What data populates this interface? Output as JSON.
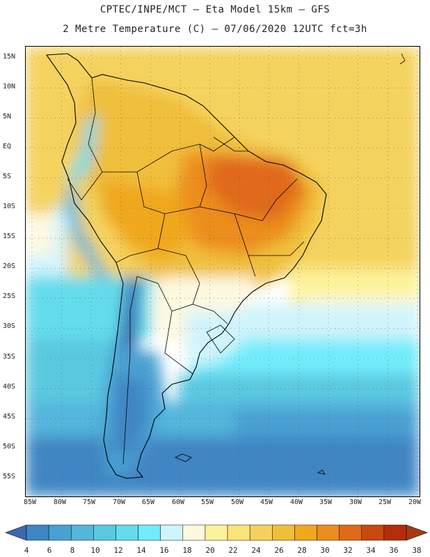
{
  "header": {
    "line1": "CPTEC/INPE/MCT –  Eta Model 15km – GFS",
    "line2": "2 Metre Temperature (C) – 07/06/2020 12UTC fct=3h"
  },
  "map": {
    "region": "South America",
    "lat_ticks": [
      "15N",
      "10N",
      "5N",
      "EQ",
      "5S",
      "10S",
      "15S",
      "20S",
      "25S",
      "30S",
      "35S",
      "40S",
      "45S",
      "50S",
      "55S"
    ],
    "lon_ticks": [
      "85W",
      "80W",
      "75W",
      "70W",
      "65W",
      "60W",
      "55W",
      "50W",
      "45W",
      "40W",
      "35W",
      "30W",
      "25W",
      "20W"
    ]
  },
  "colorbar": {
    "labels": [
      "4",
      "6",
      "8",
      "10",
      "12",
      "14",
      "16",
      "18",
      "20",
      "22",
      "24",
      "26",
      "28",
      "30",
      "32",
      "34",
      "36",
      "38"
    ],
    "colors": [
      "#3a6db2",
      "#3f86c4",
      "#48a0d3",
      "#55b6db",
      "#5ac9e0",
      "#64dcec",
      "#72ecfb",
      "#d0f4fc",
      "#fdf9e0",
      "#fdf39a",
      "#fae57a",
      "#f5d15f",
      "#f0bf3a",
      "#f0a81c",
      "#ec8d1f",
      "#e0691a",
      "#c84810",
      "#b52d0b"
    ],
    "below_color": "#3e67b0",
    "above_color": "#a83a12"
  }
}
